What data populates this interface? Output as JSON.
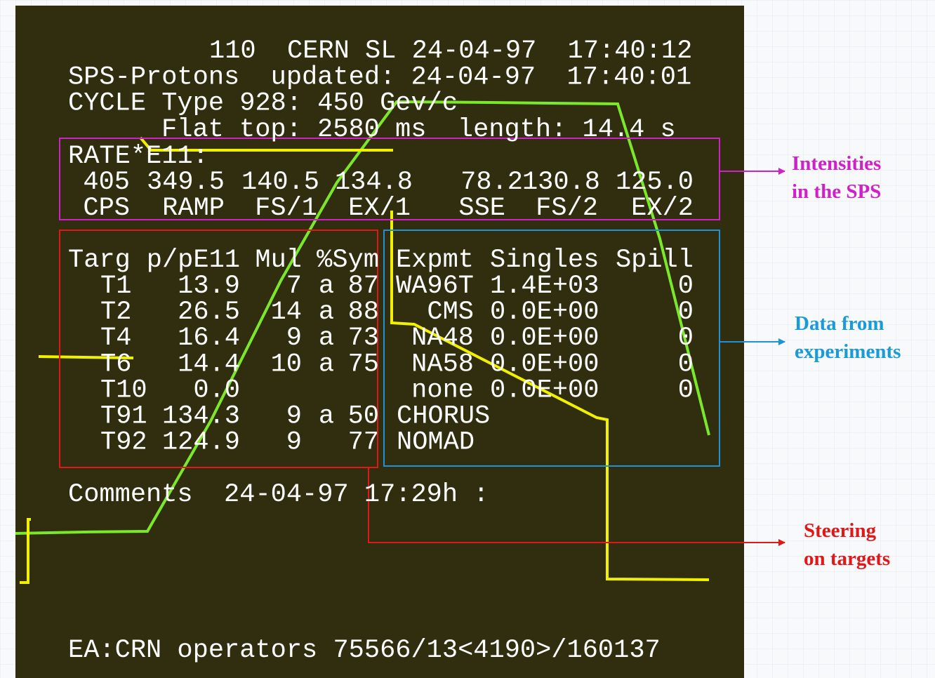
{
  "screen": {
    "header": {
      "lines": [
        "110  CERN SL 24-04-97  17:40:12",
        "SPS-Protons  updated: 24-04-97  17:40:01",
        "CYCLE Type 928: 450 Gev/c",
        "Flat top: 2580 ms  length: 14.4 s"
      ]
    },
    "rates": {
      "title": "RATE*E11:",
      "values": [
        "405",
        "349.5",
        "140.5",
        "134.8",
        "78.2",
        "130.8",
        "125.0"
      ],
      "labels": [
        "CPS",
        "RAMP",
        "FS/1",
        "EX/1",
        "SSE",
        "FS/2",
        "EX/2"
      ]
    },
    "targets": {
      "header": [
        "Targ",
        "p/pE11",
        "Mul",
        "%Sym"
      ],
      "rows": [
        [
          "T1",
          "13.9",
          "7",
          "a",
          "87"
        ],
        [
          "T2",
          "26.5",
          "14",
          "a",
          "88"
        ],
        [
          "T4",
          "16.4",
          "9",
          "a",
          "73"
        ],
        [
          "T6",
          "14.4",
          "10",
          "a",
          "75"
        ],
        [
          "T10",
          "0.0",
          null,
          null,
          null
        ],
        [
          "T91",
          "134.3",
          "9",
          "a",
          "50"
        ],
        [
          "T92",
          "124.9",
          "9",
          null,
          "77"
        ]
      ]
    },
    "experiments": {
      "header": [
        "Expmt",
        "Singles",
        "Spill"
      ],
      "rows": [
        [
          "WA96T",
          "1.4E+03",
          "0"
        ],
        [
          "CMS",
          "0.0E+00",
          "0"
        ],
        [
          "NA48",
          "0.0E+00",
          "0"
        ],
        [
          "NA58",
          "0.0E+00",
          "0"
        ],
        [
          "none",
          "0.0E+00",
          "0"
        ],
        [
          "CHORUS",
          null,
          null
        ],
        [
          "NOMAD",
          null,
          null
        ]
      ]
    },
    "comments": "Comments  24-04-97 17:29h :",
    "footer": "EA:CRN operators 75566/13<4190>/160137"
  },
  "annotations": {
    "intensities": [
      "Intensities",
      "in the SPS"
    ],
    "experiments": [
      "Data from",
      "experiments"
    ],
    "steering": [
      "Steering",
      "on targets"
    ]
  }
}
